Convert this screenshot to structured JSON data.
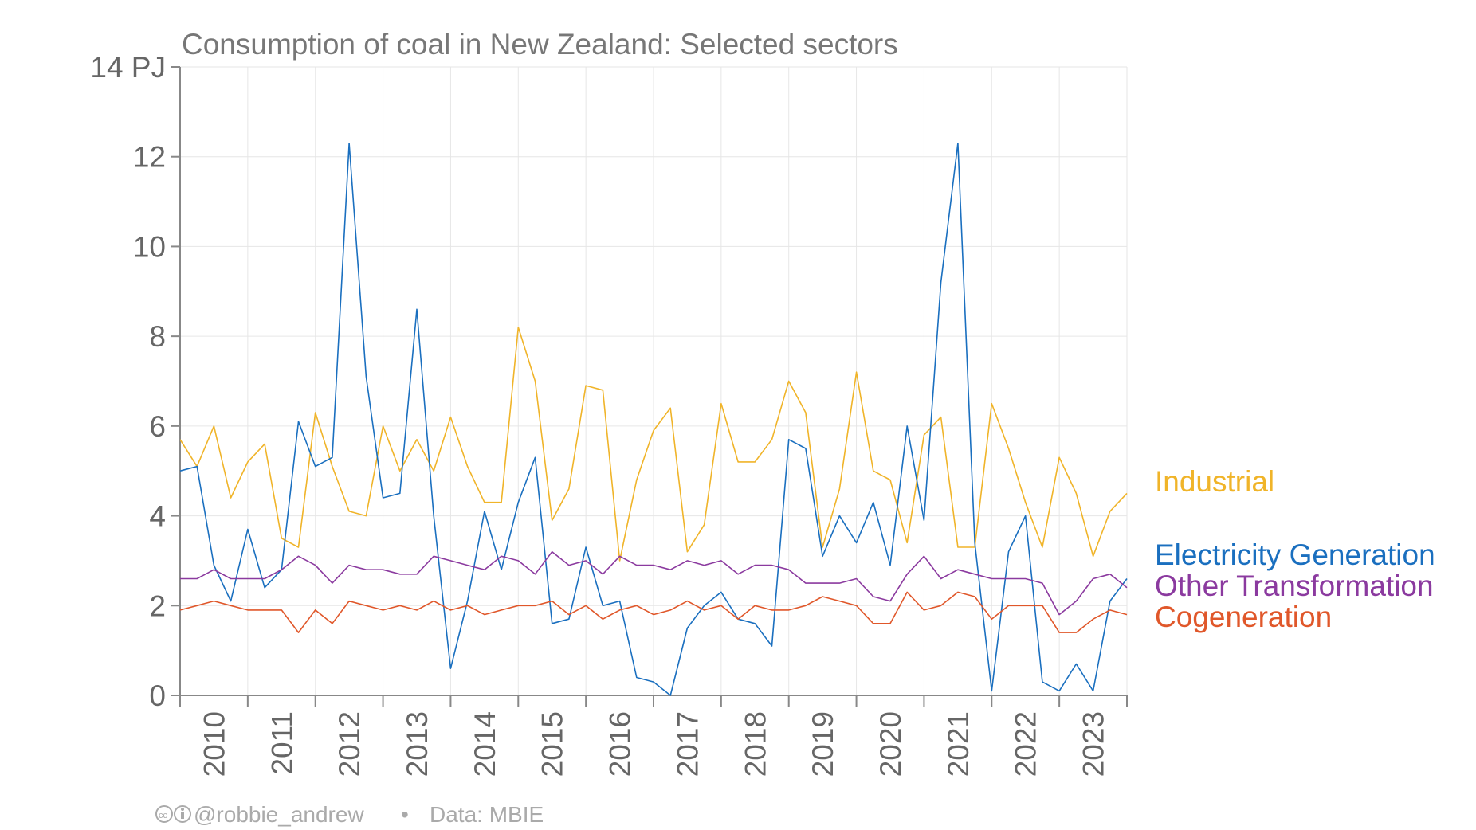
{
  "chart_data": {
    "type": "line",
    "title": "Consumption of coal in New Zealand: Selected sectors",
    "y_ticks": [
      {
        "value": 0,
        "label": "0"
      },
      {
        "value": 2,
        "label": "2"
      },
      {
        "value": 4,
        "label": "4"
      },
      {
        "value": 6,
        "label": "6"
      },
      {
        "value": 8,
        "label": "8"
      },
      {
        "value": 10,
        "label": "10"
      },
      {
        "value": 12,
        "label": "12"
      },
      {
        "value": 14,
        "label": "14 PJ"
      }
    ],
    "ylim": [
      0,
      14
    ],
    "x_start": "2010-Q1",
    "x_labels": [
      "2010",
      "2011",
      "2012",
      "2013",
      "2014",
      "2015",
      "2016",
      "2017",
      "2018",
      "2019",
      "2020",
      "2021",
      "2022",
      "2023"
    ],
    "quarters_per_year": 4,
    "grid": true,
    "legend_placement": "right",
    "series": [
      {
        "name": "Industrial",
        "color": "#f0b429",
        "values": [
          5.7,
          5.1,
          6.0,
          4.4,
          5.2,
          5.6,
          3.5,
          3.3,
          6.3,
          5.1,
          4.1,
          4.0,
          6.0,
          5.0,
          5.7,
          5.0,
          6.2,
          5.1,
          4.3,
          4.3,
          8.2,
          7.0,
          3.9,
          4.6,
          6.9,
          6.8,
          3.0,
          4.8,
          5.9,
          6.4,
          3.2,
          3.8,
          6.5,
          5.2,
          5.2,
          5.7,
          7.0,
          6.3,
          3.3,
          4.6,
          7.2,
          5.0,
          4.8,
          3.4,
          5.8,
          6.2,
          3.3,
          3.3,
          6.5,
          5.5,
          4.3,
          3.3,
          5.3,
          4.5,
          3.1,
          4.1,
          4.5
        ]
      },
      {
        "name": "Electricity Generation",
        "color": "#1a6fbf",
        "values": [
          5.0,
          5.1,
          2.9,
          2.1,
          3.7,
          2.4,
          2.8,
          6.1,
          5.1,
          5.3,
          12.3,
          7.1,
          4.4,
          4.5,
          8.6,
          4.0,
          0.6,
          2.1,
          4.1,
          2.8,
          4.3,
          5.3,
          1.6,
          1.7,
          3.3,
          2.0,
          2.1,
          0.4,
          0.3,
          0.0,
          1.5,
          2.0,
          2.3,
          1.7,
          1.6,
          1.1,
          5.7,
          5.5,
          3.1,
          4.0,
          3.4,
          4.3,
          2.9,
          6.0,
          3.9,
          9.2,
          12.3,
          3.4,
          0.1,
          3.2,
          4.0,
          0.3,
          0.1,
          0.7,
          0.1,
          2.1,
          2.6
        ]
      },
      {
        "name": "Other Transformation",
        "color": "#8b3a9f",
        "values": [
          2.6,
          2.6,
          2.8,
          2.6,
          2.6,
          2.6,
          2.8,
          3.1,
          2.9,
          2.5,
          2.9,
          2.8,
          2.8,
          2.7,
          2.7,
          3.1,
          3.0,
          2.9,
          2.8,
          3.1,
          3.0,
          2.7,
          3.2,
          2.9,
          3.0,
          2.7,
          3.1,
          2.9,
          2.9,
          2.8,
          3.0,
          2.9,
          3.0,
          2.7,
          2.9,
          2.9,
          2.8,
          2.5,
          2.5,
          2.5,
          2.6,
          2.2,
          2.1,
          2.7,
          3.1,
          2.6,
          2.8,
          2.7,
          2.6,
          2.6,
          2.6,
          2.5,
          1.8,
          2.1,
          2.6,
          2.7,
          2.4
        ]
      },
      {
        "name": "Cogeneration",
        "color": "#e0572a",
        "values": [
          1.9,
          2.0,
          2.1,
          2.0,
          1.9,
          1.9,
          1.9,
          1.4,
          1.9,
          1.6,
          2.1,
          2.0,
          1.9,
          2.0,
          1.9,
          2.1,
          1.9,
          2.0,
          1.8,
          1.9,
          2.0,
          2.0,
          2.1,
          1.8,
          2.0,
          1.7,
          1.9,
          2.0,
          1.8,
          1.9,
          2.1,
          1.9,
          2.0,
          1.7,
          2.0,
          1.9,
          1.9,
          2.0,
          2.2,
          2.1,
          2.0,
          1.6,
          1.6,
          2.3,
          1.9,
          2.0,
          2.3,
          2.2,
          1.7,
          2.0,
          2.0,
          2.0,
          1.4,
          1.4,
          1.7,
          1.9,
          1.8
        ]
      }
    ]
  },
  "footer": {
    "credit": "@robbie_andrew",
    "separator": "•",
    "source": "Data: MBIE"
  }
}
